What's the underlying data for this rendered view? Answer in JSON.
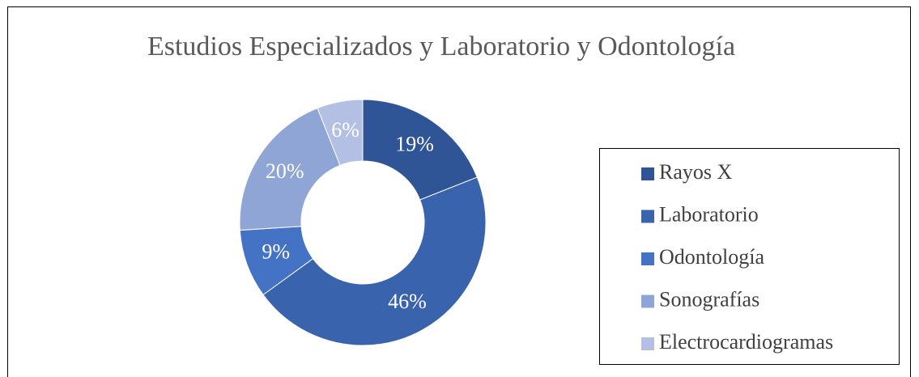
{
  "chart_data": {
    "type": "doughnut",
    "title": "Estudios Especializados y Laboratorio y Odontología",
    "categories": [
      "Rayos X",
      "Laboratorio",
      "Odontología",
      "Sonografías",
      "Electrocardiogramas"
    ],
    "values": [
      19,
      46,
      9,
      20,
      6
    ],
    "value_labels": [
      "19%",
      "46%",
      "9%",
      "20%",
      "6%"
    ],
    "colors": [
      "#2f5597",
      "#3a63ae",
      "#4472c4",
      "#8fa5d6",
      "#b4c0e3"
    ],
    "legend": "right"
  }
}
